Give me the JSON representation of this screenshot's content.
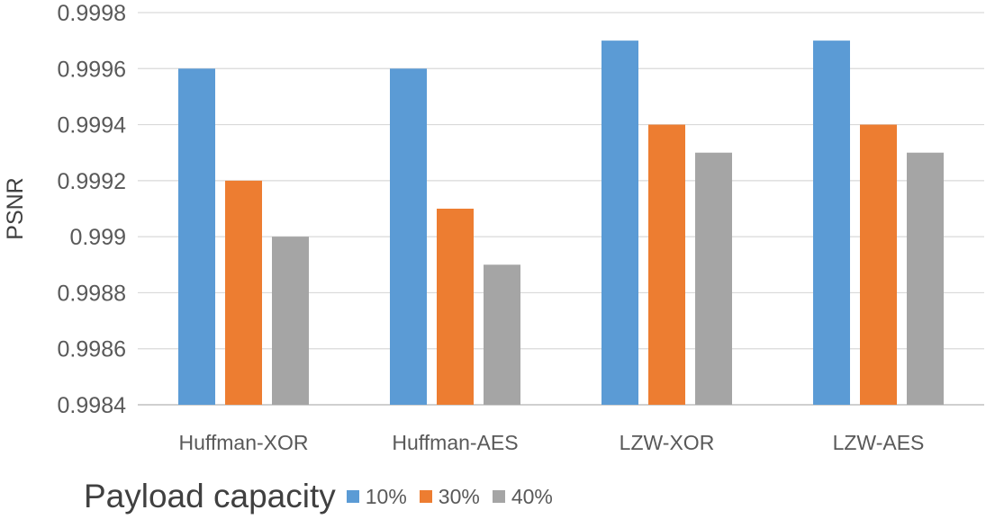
{
  "chart_data": {
    "type": "bar",
    "title": "",
    "xlabel": "",
    "ylabel": "PSNR",
    "ylim": [
      0.9984,
      0.9998
    ],
    "yticks": [
      "0.9984",
      "0.9986",
      "0.9988",
      "0.999",
      "0.9992",
      "0.9994",
      "0.9996",
      "0.9998"
    ],
    "ytick_values": [
      0.9984,
      0.9986,
      0.9988,
      0.999,
      0.9992,
      0.9994,
      0.9996,
      0.9998
    ],
    "categories": [
      "Huffman-XOR",
      "Huffman-AES",
      "LZW-XOR",
      "LZW-AES"
    ],
    "series": [
      {
        "name": "10%",
        "color": "#5B9BD5",
        "values": [
          0.9996,
          0.9996,
          0.9997,
          0.9997
        ]
      },
      {
        "name": "30%",
        "color": "#ED7D31",
        "values": [
          0.9992,
          0.9991,
          0.9994,
          0.9994
        ]
      },
      {
        "name": "40%",
        "color": "#A5A5A5",
        "values": [
          0.999,
          0.9989,
          0.9993,
          0.9993
        ]
      }
    ],
    "grid": true,
    "legend_title": "Payload capacity",
    "legend_position": "bottom-left"
  }
}
